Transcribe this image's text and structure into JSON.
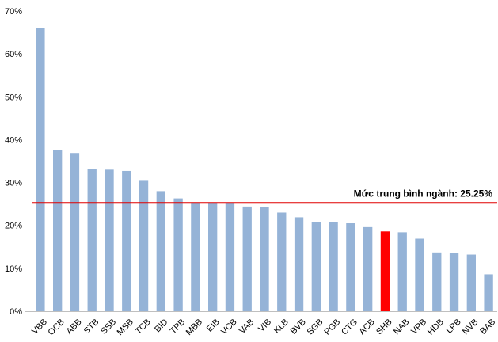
{
  "chart_data": {
    "type": "bar",
    "categories": [
      "VBB",
      "OCB",
      "ABB",
      "STB",
      "SSB",
      "MSB",
      "TCB",
      "BID",
      "TPB",
      "MBB",
      "EIB",
      "VCB",
      "VAB",
      "VIB",
      "KLB",
      "BVB",
      "SGB",
      "PGB",
      "CTG",
      "ACB",
      "SHB",
      "NAB",
      "VPB",
      "HDB",
      "LPB",
      "NVB",
      "BAB"
    ],
    "values": [
      66.0,
      37.6,
      36.9,
      33.2,
      33.0,
      32.7,
      30.4,
      28.0,
      26.3,
      25.4,
      25.2,
      25.2,
      24.4,
      24.3,
      23.0,
      21.9,
      20.8,
      20.8,
      20.5,
      19.6,
      18.6,
      18.4,
      16.9,
      13.7,
      13.5,
      13.2,
      8.6
    ],
    "highlight": "SHB",
    "colors": {
      "bar": "#95B3D7",
      "highlight": "#FF0000",
      "reference_line": "#E00000"
    },
    "reference_line": {
      "value": 25.25,
      "label": "Mức trung bình ngành: 25.25%"
    },
    "y_ticks": [
      "0%",
      "10%",
      "20%",
      "30%",
      "40%",
      "50%",
      "60%",
      "70%"
    ],
    "ylim": [
      0,
      70
    ],
    "grid": false,
    "legend": "none",
    "title": "",
    "xlabel": "",
    "ylabel": ""
  }
}
